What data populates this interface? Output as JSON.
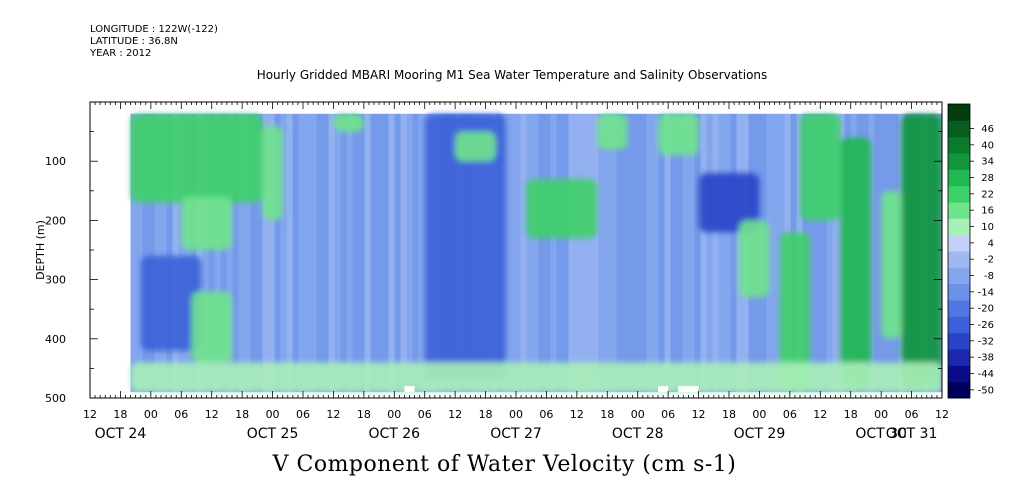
{
  "header": {
    "longitude": "LONGITUDE : 122W(-122)",
    "latitude": "LATITUDE : 36.8N",
    "year": "YEAR : 2012"
  },
  "chart_data": {
    "type": "heatmap",
    "title": "Hourly Gridded MBARI Mooring M1 Sea Water Temperature and Salinity Observations",
    "variable_title": "V Component of Water Velocity (cm s-1)",
    "ylabel": "DEPTH (m)",
    "ylim": [
      500,
      0
    ],
    "y_inverted": true,
    "y_ticks": [
      100,
      200,
      300,
      400,
      500
    ],
    "y_minor_step": 50,
    "x_start": "2012-10-24 12:00",
    "x_end": "2012-10-31 12:00",
    "data_x_start": "2012-10-24 20:00",
    "data_depth_range": [
      20,
      490
    ],
    "x_hour_labels": [
      "12",
      "18",
      "00",
      "06",
      "12",
      "18",
      "00",
      "06",
      "12",
      "18",
      "00",
      "06",
      "12",
      "18",
      "00",
      "06",
      "12",
      "18",
      "00",
      "06",
      "12",
      "18",
      "00",
      "06",
      "12",
      "18",
      "00",
      "06",
      "12"
    ],
    "x_day_labels": [
      "OCT 24",
      "OCT 25",
      "OCT 26",
      "OCT 27",
      "OCT 28",
      "OCT 29",
      "OCT 30",
      "OCT 31"
    ],
    "grid": false,
    "colorbar": {
      "placement": "right",
      "levels": [
        -50,
        -44,
        -38,
        -32,
        -26,
        -20,
        -14,
        -8,
        -2,
        4,
        10,
        16,
        22,
        28,
        34,
        40,
        46
      ],
      "label_levels": [
        46,
        40,
        34,
        28,
        22,
        16,
        10,
        4,
        -2,
        -8,
        -14,
        -20,
        -26,
        -32,
        -38,
        -44,
        -50
      ],
      "colors_low_to_high": [
        "#00005c",
        "#0a0a8a",
        "#1a28b0",
        "#2a44c8",
        "#3c60d8",
        "#5078e0",
        "#6a90e8",
        "#84a6ee",
        "#a0b8f2",
        "#c4d0f8",
        "#a8f0b8",
        "#70e48c",
        "#3ed068",
        "#20b850",
        "#12963c",
        "#0a7a2c",
        "#055e1e",
        "#023e10"
      ]
    },
    "regions": [
      {
        "x0": "2012-10-24 20:00",
        "x1": "2012-10-25 22:00",
        "d0": 20,
        "d1": 170,
        "v": 18
      },
      {
        "x0": "2012-10-25 06:00",
        "x1": "2012-10-25 16:00",
        "d0": 160,
        "d1": 250,
        "v": 14
      },
      {
        "x0": "2012-10-25 22:00",
        "x1": "2012-10-26 02:00",
        "d0": 40,
        "d1": 200,
        "v": 12
      },
      {
        "x0": "2012-10-24 22:00",
        "x1": "2012-10-25 10:00",
        "d0": 260,
        "d1": 420,
        "v": -30
      },
      {
        "x0": "2012-10-25 08:00",
        "x1": "2012-10-25 16:00",
        "d0": 320,
        "d1": 440,
        "v": 10
      },
      {
        "x0": "2012-10-26 12:00",
        "x1": "2012-10-26 18:00",
        "d0": 20,
        "d1": 50,
        "v": 14
      },
      {
        "x0": "2012-10-27 06:00",
        "x1": "2012-10-27 22:00",
        "d0": 20,
        "d1": 470,
        "v": -28
      },
      {
        "x0": "2012-10-27 12:00",
        "x1": "2012-10-27 20:00",
        "d0": 50,
        "d1": 100,
        "v": 12
      },
      {
        "x0": "2012-10-28 02:00",
        "x1": "2012-10-28 16:00",
        "d0": 130,
        "d1": 230,
        "v": 16
      },
      {
        "x0": "2012-10-28 16:00",
        "x1": "2012-10-28 22:00",
        "d0": 20,
        "d1": 80,
        "v": 10
      },
      {
        "x0": "2012-10-29 04:00",
        "x1": "2012-10-29 12:00",
        "d0": 20,
        "d1": 90,
        "v": 12
      },
      {
        "x0": "2012-10-29 12:00",
        "x1": "2012-10-30 00:00",
        "d0": 120,
        "d1": 220,
        "v": -34
      },
      {
        "x0": "2012-10-29 20:00",
        "x1": "2012-10-30 02:00",
        "d0": 200,
        "d1": 330,
        "v": 14
      },
      {
        "x0": "2012-10-30 04:00",
        "x1": "2012-10-30 10:00",
        "d0": 220,
        "d1": 490,
        "v": 20
      },
      {
        "x0": "2012-10-30 08:00",
        "x1": "2012-10-30 16:00",
        "d0": 20,
        "d1": 200,
        "v": 16
      },
      {
        "x0": "2012-10-30 16:00",
        "x1": "2012-10-30 22:00",
        "d0": 60,
        "d1": 480,
        "v": 26
      },
      {
        "x0": "2012-10-31 00:00",
        "x1": "2012-10-31 04:00",
        "d0": 150,
        "d1": 400,
        "v": 14
      },
      {
        "x0": "2012-10-31 04:00",
        "x1": "2012-10-31 12:00",
        "d0": 20,
        "d1": 480,
        "v": 30
      },
      {
        "x0": "2012-10-24 20:00",
        "x1": "2012-10-31 12:00",
        "d0": 440,
        "d1": 490,
        "v": 6
      }
    ],
    "missing_cells": [
      {
        "x0": "2012-10-27 02:00",
        "x1": "2012-10-27 04:00",
        "d0": 480,
        "d1": 490
      },
      {
        "x0": "2012-10-29 04:00",
        "x1": "2012-10-29 06:00",
        "d0": 480,
        "d1": 490
      },
      {
        "x0": "2012-10-29 08:00",
        "x1": "2012-10-29 12:00",
        "d0": 480,
        "d1": 490
      }
    ]
  }
}
